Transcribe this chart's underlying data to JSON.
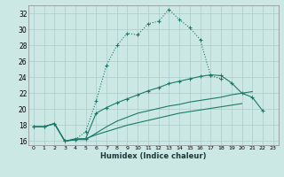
{
  "xlabel": "Humidex (Indice chaleur)",
  "x": [
    0,
    1,
    2,
    3,
    4,
    5,
    6,
    7,
    8,
    9,
    10,
    11,
    12,
    13,
    14,
    15,
    16,
    17,
    18,
    19,
    20,
    21,
    22,
    23
  ],
  "curve1": [
    17.8,
    17.8,
    18.2,
    16.0,
    16.2,
    17.2,
    21.0,
    25.5,
    28.0,
    29.5,
    29.3,
    30.7,
    31.0,
    32.5,
    31.2,
    30.2,
    28.7,
    24.2,
    23.8,
    null,
    null,
    null,
    null,
    null
  ],
  "curve2": [
    17.8,
    17.8,
    18.2,
    16.0,
    16.3,
    16.3,
    19.5,
    20.2,
    20.8,
    21.3,
    21.8,
    22.3,
    22.7,
    23.2,
    23.5,
    23.8,
    24.1,
    24.3,
    24.2,
    23.3,
    22.0,
    21.5,
    19.8,
    null
  ],
  "curve3": [
    17.8,
    17.8,
    18.2,
    16.0,
    16.2,
    16.2,
    17.0,
    17.8,
    18.5,
    19.0,
    19.5,
    19.8,
    20.1,
    20.4,
    20.6,
    20.9,
    21.1,
    21.3,
    21.5,
    21.8,
    22.0,
    22.2,
    null,
    null
  ],
  "curve4": [
    17.8,
    17.8,
    18.2,
    16.0,
    16.2,
    16.3,
    16.8,
    17.2,
    17.6,
    18.0,
    18.3,
    18.6,
    18.9,
    19.2,
    19.5,
    19.7,
    19.9,
    20.1,
    20.3,
    20.5,
    20.7,
    null,
    null,
    null
  ],
  "bg_color": "#cce8e4",
  "grid_color": "#aacccc",
  "line_color": "#1a7a6a",
  "ylim": [
    15.5,
    33
  ],
  "xlim": [
    -0.5,
    23.5
  ],
  "yticks": [
    16,
    18,
    20,
    22,
    24,
    26,
    28,
    30,
    32
  ],
  "xticks": [
    0,
    1,
    2,
    3,
    4,
    5,
    6,
    7,
    8,
    9,
    10,
    11,
    12,
    13,
    14,
    15,
    16,
    17,
    18,
    19,
    20,
    21,
    22,
    23
  ]
}
